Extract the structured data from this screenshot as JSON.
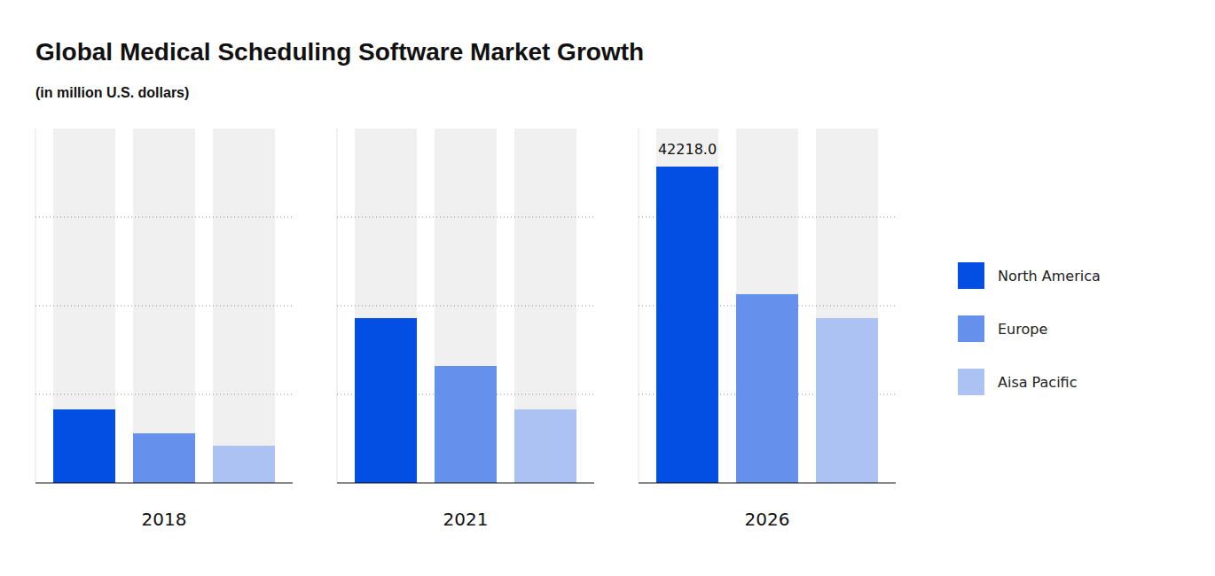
{
  "chart_data": {
    "type": "bar",
    "title": "Global Medical Scheduling Software Market Growth",
    "subtitle": "(in million U.S. dollars)",
    "categories": [
      "2018",
      "2021",
      "2026"
    ],
    "series": [
      {
        "name": "North America",
        "color": "#034ee3",
        "values": [
          9815,
          21995,
          42218
        ],
        "value_labels": [
          null,
          null,
          "42218.0"
        ]
      },
      {
        "name": "Europe",
        "color": "#6590eb",
        "values": [
          6622,
          15609,
          25187
        ]
      },
      {
        "name": "Aisa Pacific",
        "color": "#abc2f2",
        "values": [
          4967,
          9815,
          21995
        ]
      }
    ],
    "ylim": [
      0,
      47300
    ],
    "yticks": [
      11825,
      23650,
      35475
    ],
    "grid": true,
    "tick_labels": false,
    "legend": "right"
  }
}
